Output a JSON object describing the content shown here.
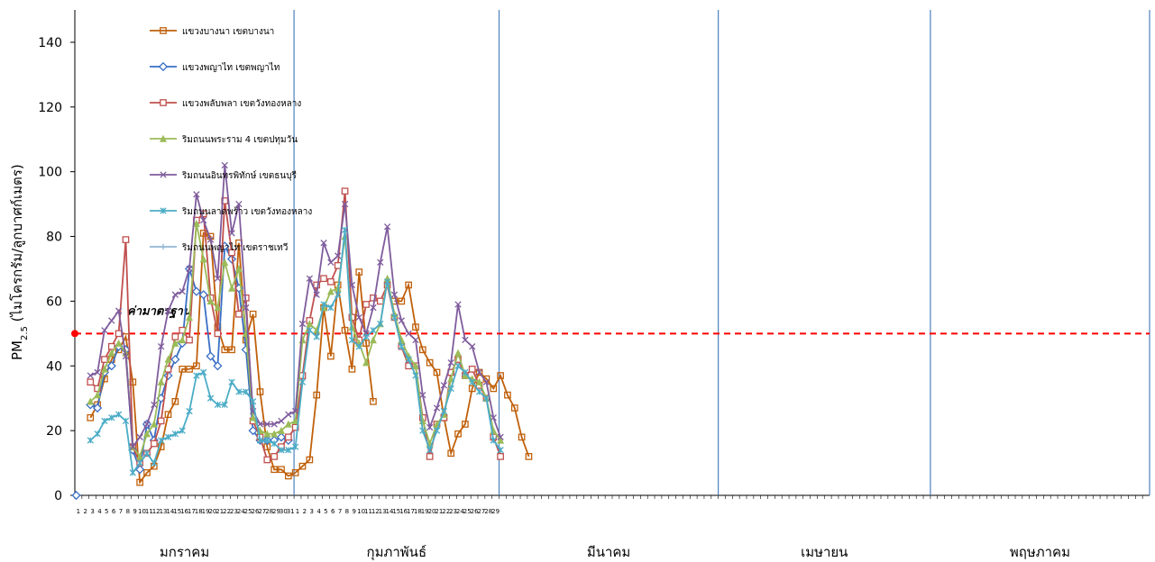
{
  "chart_data": {
    "type": "line",
    "xlabel": "",
    "ylabel_main": "PM",
    "ylabel_sub": "2.5",
    "ylabel_rest": " (ไมโครกรัม/ลูกบาศก์เมตร)",
    "ylim": [
      0,
      150
    ],
    "yticks": [
      "0",
      "20",
      "40",
      "60",
      "80",
      "100",
      "120",
      "140"
    ],
    "grid": false,
    "legend_position": "top-left",
    "standard": {
      "label": "ค่ามาตรฐาน",
      "value": 50,
      "color": "#ff0000"
    },
    "months": [
      {
        "label": "มกราคม",
        "days": 31
      },
      {
        "label": "กุมภาพันธ์",
        "days": 29
      },
      {
        "label": "มีนาคม",
        "days": 31
      },
      {
        "label": "เมษายน",
        "days": 30
      },
      {
        "label": "พฤษภาคม",
        "days": 31
      }
    ],
    "series": [
      {
        "name": "แขวงบางนา เขตบางนา",
        "color": "#c0600a",
        "marker": "square",
        "values": [
          null,
          null,
          24,
          28,
          36,
          42,
          45,
          49,
          35,
          4,
          7,
          9,
          15,
          25,
          29,
          39,
          39,
          40,
          81,
          80,
          52,
          45,
          45,
          78,
          48,
          56,
          32,
          15,
          8,
          8,
          6,
          7,
          9,
          11,
          31,
          58,
          43,
          65,
          51,
          39,
          69,
          47,
          29,
          null,
          null,
          60,
          60,
          65,
          52,
          45,
          41,
          38,
          24,
          13,
          19,
          22,
          33,
          38,
          36,
          33,
          37,
          31,
          27,
          18,
          12
        ]
      },
      {
        "name": "แขวงพญาไท เขตพญาไท",
        "color": "#3a6fc4",
        "marker": "diamond",
        "values": [
          0,
          null,
          28,
          27,
          38,
          40,
          46,
          45,
          14,
          8,
          22,
          17,
          30,
          37,
          42,
          47,
          70,
          63,
          62,
          43,
          40,
          77,
          73,
          64,
          45,
          20,
          17,
          17,
          17,
          18,
          17,
          null,
          null,
          null,
          null,
          null,
          null,
          null,
          null,
          null,
          null,
          null,
          null,
          null,
          null,
          null,
          null,
          null,
          null,
          null,
          null,
          null,
          null,
          null,
          null,
          null,
          null,
          null,
          null,
          null,
          null,
          null,
          null,
          null,
          null
        ]
      },
      {
        "name": "แขวงพลับพลา เขตวังทองหลาง",
        "color": "#c0504d",
        "marker": "square-open",
        "values": [
          null,
          null,
          35,
          33,
          42,
          46,
          50,
          79,
          15,
          10,
          13,
          16,
          23,
          39,
          49,
          51,
          48,
          85,
          87,
          61,
          50,
          91,
          75,
          56,
          61,
          23,
          18,
          11,
          12,
          15,
          18,
          21,
          37,
          54,
          65,
          67,
          66,
          71,
          94,
          55,
          48,
          59,
          61,
          60,
          65,
          55,
          46,
          40,
          40,
          24,
          12,
          22,
          24,
          38,
          42,
          37,
          39,
          34,
          30,
          18,
          12
        ]
      },
      {
        "name": "ริมถนนพระราม 4 เขตปทุมวัน",
        "color": "#9bbb59",
        "marker": "triangle",
        "values": [
          null,
          null,
          29,
          31,
          39,
          44,
          47,
          44,
          15,
          12,
          19,
          22,
          35,
          42,
          47,
          48,
          55,
          84,
          73,
          60,
          58,
          72,
          64,
          70,
          50,
          24,
          20,
          19,
          19,
          20,
          22,
          23,
          48,
          53,
          51,
          58,
          63,
          64,
          80,
          52,
          47,
          41,
          48,
          53,
          67,
          56,
          48,
          43,
          40,
          23,
          16,
          22,
          25,
          36,
          44,
          37,
          36,
          35,
          30,
          20,
          17
        ]
      },
      {
        "name": "ริมถนนอินทรพิทักษ์ เขตธนบุรี",
        "color": "#7f5c9c",
        "marker": "x",
        "values": [
          null,
          null,
          37,
          38,
          51,
          54,
          57,
          43,
          15,
          18,
          22,
          28,
          46,
          57,
          62,
          63,
          70,
          93,
          85,
          79,
          67,
          102,
          81,
          90,
          58,
          26,
          22,
          22,
          22,
          23,
          25,
          26,
          53,
          67,
          62,
          78,
          72,
          74,
          90,
          65,
          55,
          50,
          58,
          72,
          83,
          62,
          54,
          50,
          48,
          31,
          21,
          27,
          34,
          41,
          59,
          48,
          46,
          38,
          35,
          24,
          18
        ]
      },
      {
        "name": "ริมถนนลาดพร้าว เขตวังทองหลาง",
        "color": "#4bacc6",
        "marker": "star",
        "values": [
          null,
          null,
          17,
          19,
          23,
          24,
          25,
          23,
          7,
          10,
          13,
          10,
          17,
          18,
          19,
          20,
          26,
          37,
          38,
          30,
          28,
          28,
          35,
          32,
          32,
          29,
          17,
          17,
          16,
          14,
          14,
          15,
          35,
          51,
          49,
          59,
          58,
          62,
          82,
          48,
          46,
          49,
          51,
          53,
          66,
          55,
          46,
          42,
          37,
          20,
          14,
          20,
          26,
          33,
          40,
          38,
          35,
          32,
          30,
          17,
          14
        ]
      },
      {
        "name": "ริมถนนพญาไท เขตราชเทวี",
        "color": "#93b6d3",
        "marker": "plus",
        "values": [
          null,
          null,
          null,
          null,
          null,
          null,
          null,
          null,
          null,
          null,
          null,
          null,
          null,
          null,
          null,
          null,
          null,
          null,
          null,
          null,
          null,
          null,
          null,
          null,
          null,
          null,
          null,
          null,
          null,
          null,
          null,
          null,
          null,
          null,
          null,
          null,
          null,
          null,
          null,
          null,
          null,
          null,
          null,
          null,
          null,
          null,
          null,
          null,
          null,
          null,
          null,
          null,
          null,
          null,
          null,
          null,
          null,
          null,
          null,
          null,
          null
        ]
      }
    ]
  }
}
